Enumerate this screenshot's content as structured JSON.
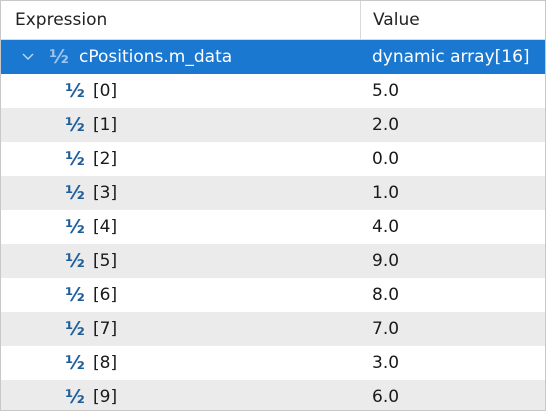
{
  "columns": {
    "expression": "Expression",
    "value": "Value"
  },
  "root": {
    "name": "cPositions.m_data",
    "value": "dynamic array[16]",
    "icon": "fraction-half-icon",
    "expanded": true
  },
  "items": [
    {
      "name": "[0]",
      "value": "5.0"
    },
    {
      "name": "[1]",
      "value": "2.0"
    },
    {
      "name": "[2]",
      "value": "0.0"
    },
    {
      "name": "[3]",
      "value": "1.0"
    },
    {
      "name": "[4]",
      "value": "4.0"
    },
    {
      "name": "[5]",
      "value": "9.0"
    },
    {
      "name": "[6]",
      "value": "8.0"
    },
    {
      "name": "[7]",
      "value": "7.0"
    },
    {
      "name": "[8]",
      "value": "3.0"
    },
    {
      "name": "[9]",
      "value": "6.0"
    }
  ],
  "icon_glyph": "½",
  "colors": {
    "selection": "#1b78d0",
    "alt_row": "#ebebeb",
    "icon": "#1d5e9a"
  }
}
